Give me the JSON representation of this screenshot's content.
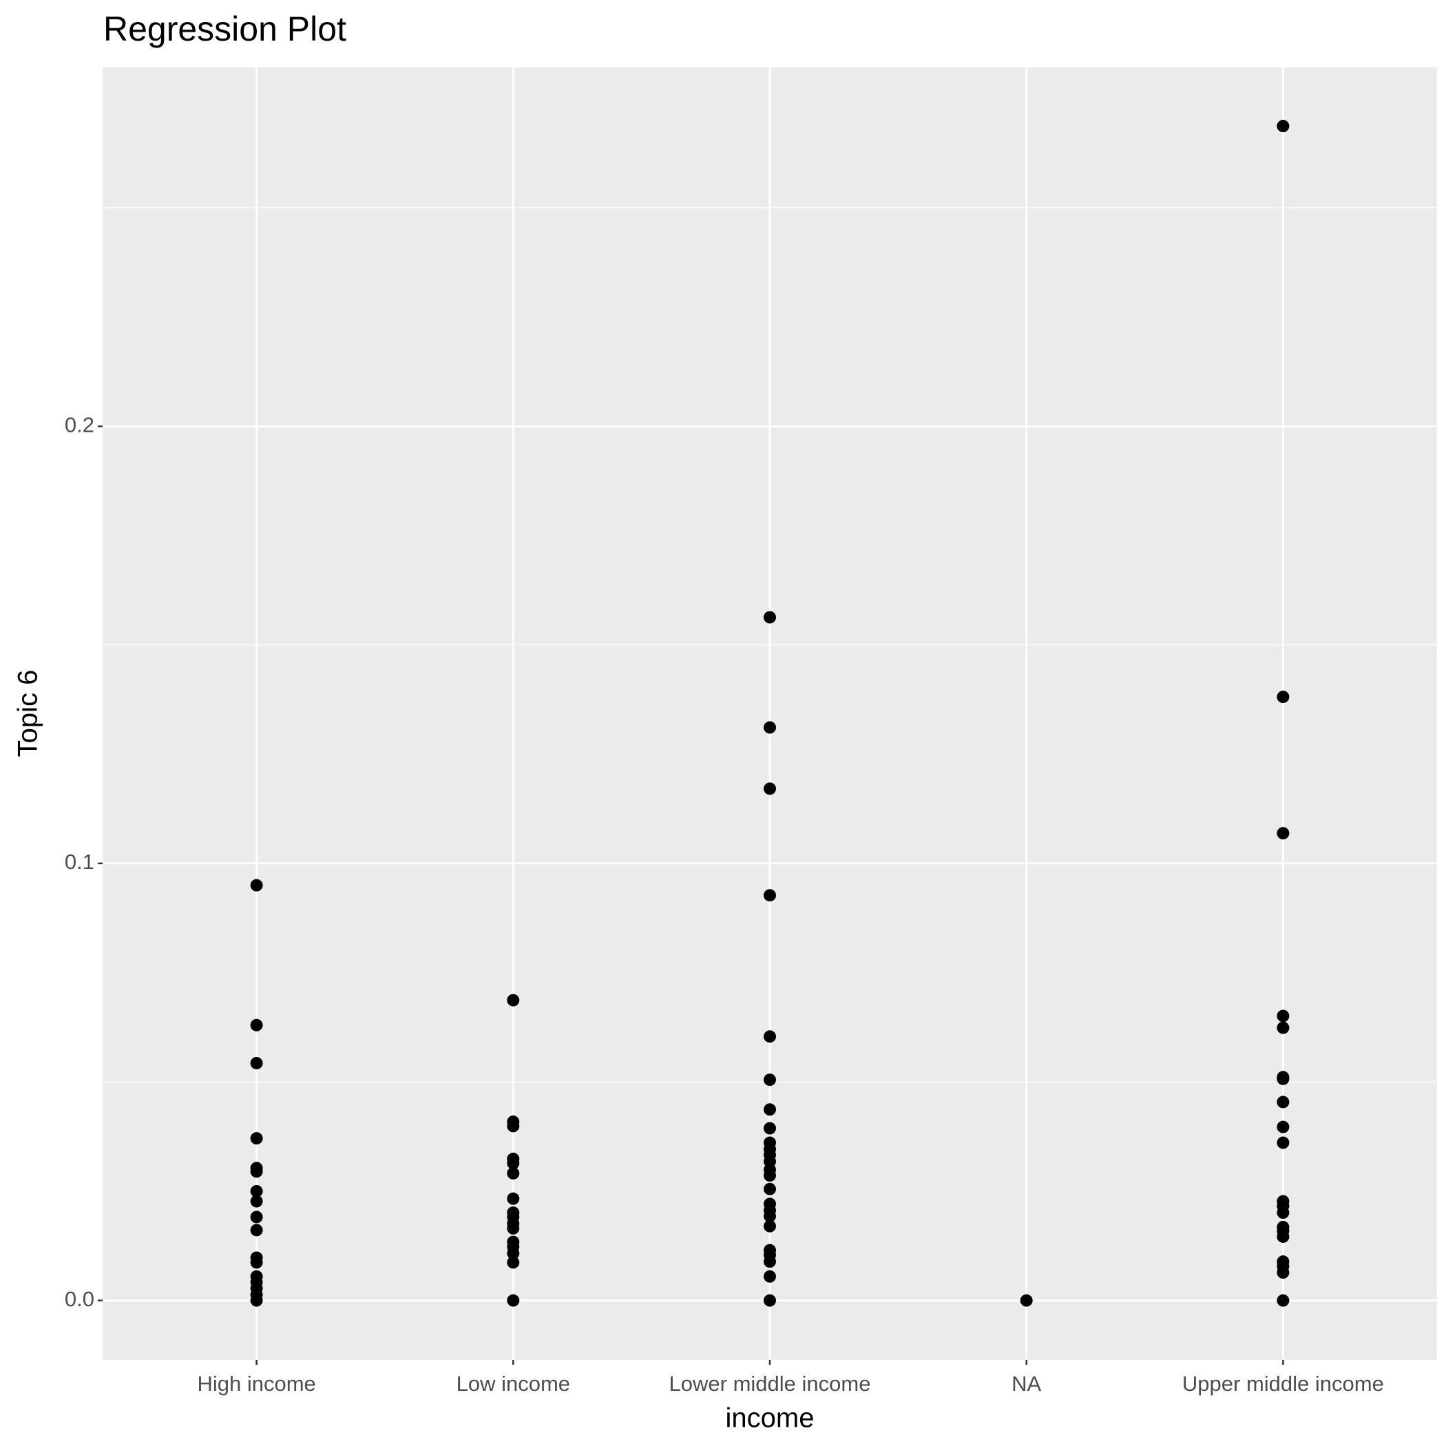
{
  "chart_data": {
    "type": "strip",
    "title": "Regression Plot",
    "x_label": "income",
    "y_label": "Topic 6",
    "categories": [
      "High income",
      "Low income",
      "Lower middle income",
      "NA",
      "Upper middle income"
    ],
    "values": [
      [
        0.095,
        0.063,
        0.0543,
        0.0371,
        0.0303,
        0.0295,
        0.025,
        0.0227,
        0.0191,
        0.0161,
        0.0098,
        0.0087,
        0.0055,
        0.0042,
        0.0028,
        0.0013,
        0
      ],
      [
        0.0687,
        0.0409,
        0.0399,
        0.0324,
        0.0314,
        0.0291,
        0.0233,
        0.0201,
        0.0191,
        0.0176,
        0.0165,
        0.0134,
        0.0123,
        0.0108,
        0.0087,
        0
      ],
      [
        0.1563,
        0.1311,
        0.1171,
        0.0927,
        0.0604,
        0.0505,
        0.0437,
        0.0394,
        0.0361,
        0.0346,
        0.0333,
        0.0318,
        0.0299,
        0.0286,
        0.0255,
        0.0221,
        0.0206,
        0.0193,
        0.017,
        0.0115,
        0.0104,
        0.0089,
        0.0055,
        0
      ],
      [
        0
      ],
      [
        0.2687,
        0.1381,
        0.1069,
        0.0651,
        0.0624,
        0.0511,
        0.0507,
        0.0454,
        0.0397,
        0.0361,
        0.0227,
        0.0216,
        0.0201,
        0.0168,
        0.0159,
        0.0146,
        0.0089,
        0.0078,
        0.0064,
        0
      ]
    ],
    "color": "#000000",
    "ylim": [
      -0.0136,
      0.2821
    ],
    "yticks": [
      {
        "value": 0,
        "label": "0.0"
      },
      0.1,
      0.2
    ],
    "y_minor_grid": [
      0.05,
      0.15,
      0.25
    ],
    "grid": true
  }
}
